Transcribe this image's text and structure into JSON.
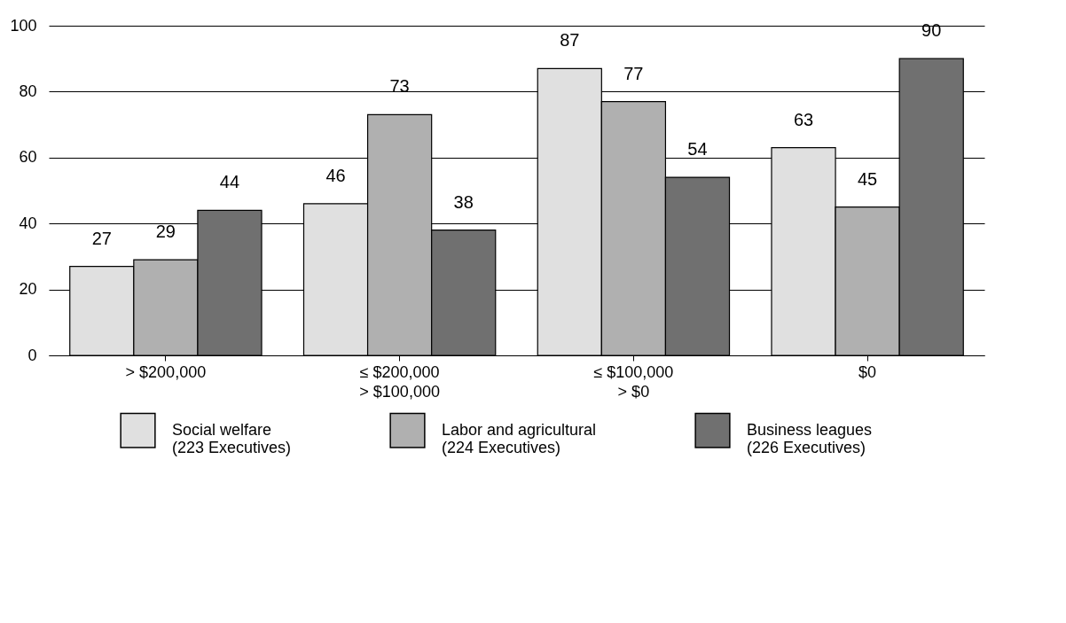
{
  "chart_data": {
    "type": "bar",
    "categories": [
      "> $200,000",
      "≤ $200,000\n> $100,000",
      "≤ $100,000\n> $0",
      "$0"
    ],
    "series": [
      {
        "name": "Social welfare\n(223 Executives)",
        "color": "#e0e0e0",
        "values": [
          27,
          46,
          87,
          63
        ]
      },
      {
        "name": "Labor and agricultural\n(224 Executives)",
        "color": "#b0b0b0",
        "values": [
          29,
          73,
          77,
          45
        ]
      },
      {
        "name": "Business leagues\n(226 Executives)",
        "color": "#707070",
        "values": [
          44,
          38,
          54,
          90
        ]
      }
    ],
    "ylim": [
      0,
      100
    ],
    "yticks": [
      0,
      20,
      40,
      60,
      80,
      100
    ],
    "grid": "y",
    "legend": "bottom",
    "data_labels": true
  }
}
